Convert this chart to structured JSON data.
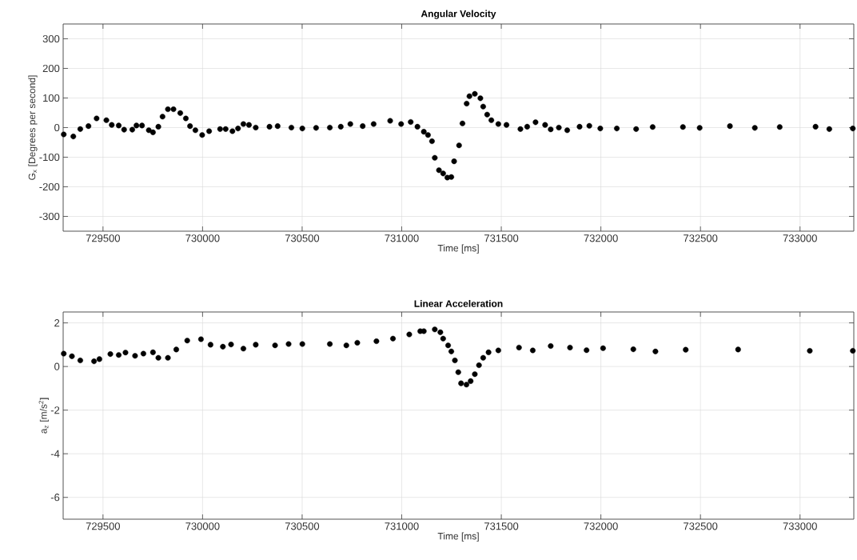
{
  "chart_data": [
    {
      "type": "scatter",
      "title": "Angular Velocity",
      "xlabel": "Time [ms]",
      "ylabel": "G$_{x}$ [Degrees per second]",
      "marker": "circle",
      "grid": true,
      "xlim": [
        729300,
        733270
      ],
      "ylim": [
        -350,
        350
      ],
      "xticks": [
        729500,
        730000,
        730500,
        731000,
        731500,
        732000,
        732500,
        733000
      ],
      "yticks": [
        -300,
        -200,
        -100,
        0,
        100,
        200,
        300
      ],
      "series": [
        {
          "color": "#000000",
          "x": [
            729303,
            729351,
            729386,
            729427,
            729468,
            729517,
            729544,
            729579,
            729606,
            729647,
            729668,
            729696,
            729730,
            729751,
            729778,
            729799,
            729826,
            729854,
            729888,
            729916,
            729937,
            729964,
            729998,
            730033,
            730088,
            730116,
            730150,
            730178,
            730205,
            730233,
            730267,
            730336,
            730377,
            730446,
            730501,
            730570,
            730639,
            730694,
            730742,
            730804,
            730859,
            730942,
            730997,
            731045,
            731079,
            731111,
            731132,
            731152,
            731166,
            731187,
            731208,
            731229,
            731249,
            731263,
            731288,
            731305,
            731326,
            731340,
            731367,
            731395,
            731409,
            731429,
            731450,
            731485,
            731526,
            731596,
            731630,
            731672,
            731720,
            731748,
            731789,
            731831,
            731893,
            731942,
            731997,
            732080,
            732177,
            732260,
            732412,
            732496,
            732648,
            732773,
            732898,
            733078,
            733147,
            733265
          ],
          "values": [
            -23,
            -30,
            -5,
            5,
            31,
            25,
            9,
            7,
            -7,
            -7,
            7,
            7,
            -9,
            -16,
            3,
            37,
            62,
            62,
            49,
            31,
            5,
            -9,
            -25,
            -12,
            -5,
            -5,
            -12,
            -3,
            12,
            9,
            0,
            3,
            5,
            0,
            -3,
            -1,
            0,
            3,
            12,
            5,
            12,
            23,
            12,
            19,
            3,
            -14,
            -25,
            -46,
            -102,
            -144,
            -155,
            -169,
            -167,
            -114,
            -60,
            14,
            81,
            106,
            114,
            99,
            71,
            44,
            25,
            12,
            9,
            -5,
            3,
            18,
            9,
            -6,
            0,
            -9,
            3,
            6,
            -3,
            -3,
            -5,
            2,
            2,
            -1,
            5,
            -1,
            2,
            3,
            -5,
            -3
          ]
        }
      ]
    },
    {
      "type": "scatter",
      "title": "Linear Acceleration",
      "xlabel": "Time [ms]",
      "ylabel": "a$_{z}$ [m/s$^{2}$]",
      "marker": "circle",
      "grid": true,
      "xlim": [
        729300,
        733270
      ],
      "ylim": [
        -7,
        2.5
      ],
      "xticks": [
        729500,
        730000,
        730500,
        731000,
        731500,
        732000,
        732500,
        733000
      ],
      "yticks": [
        -6,
        -4,
        -2,
        0,
        2
      ],
      "series": [
        {
          "color": "#000000",
          "x": [
            729303,
            729344,
            729386,
            729455,
            729482,
            729537,
            729579,
            729613,
            729661,
            729703,
            729751,
            729778,
            729826,
            729868,
            729923,
            729992,
            730040,
            730102,
            730143,
            730205,
            730267,
            730364,
            730432,
            730501,
            730639,
            730722,
            730777,
            730873,
            730956,
            731038,
            731093,
            731111,
            731166,
            731194,
            731208,
            731233,
            731249,
            731267,
            731284,
            731298,
            731325,
            731346,
            731367,
            731388,
            731409,
            731436,
            731485,
            731589,
            731658,
            731748,
            731845,
            731928,
            732011,
            732163,
            732274,
            732426,
            732689,
            733049,
            733265
          ],
          "values": [
            0.59,
            0.47,
            0.28,
            0.24,
            0.34,
            0.57,
            0.53,
            0.64,
            0.49,
            0.59,
            0.65,
            0.4,
            0.4,
            0.78,
            1.19,
            1.25,
            1.0,
            0.91,
            1.01,
            0.82,
            1.0,
            0.97,
            1.03,
            1.03,
            1.03,
            0.97,
            1.09,
            1.16,
            1.28,
            1.47,
            1.62,
            1.62,
            1.7,
            1.57,
            1.28,
            0.97,
            0.69,
            0.28,
            -0.26,
            -0.77,
            -0.83,
            -0.67,
            -0.35,
            0.06,
            0.4,
            0.65,
            0.74,
            0.87,
            0.74,
            0.94,
            0.87,
            0.75,
            0.84,
            0.79,
            0.69,
            0.77,
            0.78,
            0.72,
            0.72
          ]
        }
      ]
    }
  ]
}
